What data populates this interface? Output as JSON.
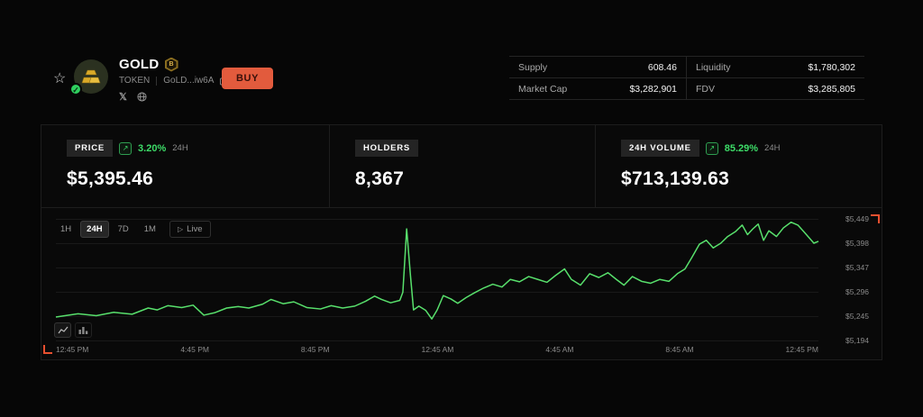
{
  "header": {
    "token_name": "GOLD",
    "badge_letter": "B",
    "token_type": "TOKEN",
    "token_address": "GoLD...iw6A",
    "buy_label": "BUY"
  },
  "stats_table": {
    "cells": [
      {
        "label": "Supply",
        "value": "608.46"
      },
      {
        "label": "Liquidity",
        "value": "$1,780,302"
      },
      {
        "label": "Market Cap",
        "value": "$3,282,901"
      },
      {
        "label": "FDV",
        "value": "$3,285,805"
      }
    ]
  },
  "stat_cards": [
    {
      "label": "PRICE",
      "change": "3.20%",
      "period": "24H",
      "value": "$5,395.46"
    },
    {
      "label": "HOLDERS",
      "value": "8,367"
    },
    {
      "label": "24H VOLUME",
      "change": "85.29%",
      "period": "24H",
      "value": "$713,139.63"
    }
  ],
  "chart_controls": {
    "ranges": [
      "1H",
      "24H",
      "7D",
      "1M"
    ],
    "active_range": "24H",
    "live_label": "Live"
  },
  "chart_data": {
    "type": "line",
    "line_color": "#58e06c",
    "ylim": [
      5194,
      5449
    ],
    "grid": true,
    "legend": "none",
    "y_ticks": [
      "$5,449",
      "$5,398",
      "$5,347",
      "$5,296",
      "$5,245",
      "$5,194"
    ],
    "x_ticks": [
      "12:45 PM",
      "4:45 PM",
      "8:45 PM",
      "12:45 AM",
      "4:45 AM",
      "8:45 AM",
      "12:45 PM"
    ],
    "points": [
      [
        0,
        5243
      ],
      [
        2.9,
        5250
      ],
      [
        5.3,
        5246
      ],
      [
        7.6,
        5253
      ],
      [
        10,
        5249
      ],
      [
        12.1,
        5262
      ],
      [
        13.3,
        5258
      ],
      [
        14.7,
        5267
      ],
      [
        16.5,
        5263
      ],
      [
        18,
        5268
      ],
      [
        19.4,
        5247
      ],
      [
        20.8,
        5252
      ],
      [
        22.4,
        5262
      ],
      [
        23.9,
        5265
      ],
      [
        25.3,
        5262
      ],
      [
        27.1,
        5270
      ],
      [
        28.2,
        5280
      ],
      [
        29.8,
        5271
      ],
      [
        31.2,
        5275
      ],
      [
        32.9,
        5263
      ],
      [
        34.7,
        5260
      ],
      [
        36.1,
        5267
      ],
      [
        37.6,
        5262
      ],
      [
        39.2,
        5266
      ],
      [
        40.6,
        5276
      ],
      [
        41.8,
        5287
      ],
      [
        42.7,
        5280
      ],
      [
        43.9,
        5273
      ],
      [
        45.1,
        5278
      ],
      [
        45.5,
        5295
      ],
      [
        46,
        5428
      ],
      [
        46.5,
        5330
      ],
      [
        46.9,
        5258
      ],
      [
        47.6,
        5266
      ],
      [
        48.5,
        5257
      ],
      [
        49.3,
        5239
      ],
      [
        50,
        5258
      ],
      [
        50.8,
        5288
      ],
      [
        51.8,
        5281
      ],
      [
        52.7,
        5272
      ],
      [
        53.8,
        5284
      ],
      [
        54.9,
        5294
      ],
      [
        56.1,
        5304
      ],
      [
        57.3,
        5312
      ],
      [
        58.5,
        5306
      ],
      [
        59.6,
        5322
      ],
      [
        60.8,
        5317
      ],
      [
        62,
        5328
      ],
      [
        63.2,
        5322
      ],
      [
        64.4,
        5316
      ],
      [
        65.5,
        5330
      ],
      [
        66.7,
        5344
      ],
      [
        67.6,
        5322
      ],
      [
        68.8,
        5310
      ],
      [
        70,
        5334
      ],
      [
        71.2,
        5326
      ],
      [
        72.4,
        5336
      ],
      [
        73.5,
        5322
      ],
      [
        74.5,
        5310
      ],
      [
        75.6,
        5328
      ],
      [
        76.8,
        5318
      ],
      [
        78,
        5314
      ],
      [
        79.2,
        5322
      ],
      [
        80.4,
        5318
      ],
      [
        81.5,
        5334
      ],
      [
        82.5,
        5344
      ],
      [
        83.4,
        5368
      ],
      [
        84.4,
        5396
      ],
      [
        85.3,
        5404
      ],
      [
        86.2,
        5388
      ],
      [
        87.2,
        5398
      ],
      [
        88.1,
        5412
      ],
      [
        89.1,
        5422
      ],
      [
        90,
        5436
      ],
      [
        90.7,
        5416
      ],
      [
        91.4,
        5428
      ],
      [
        92.1,
        5438
      ],
      [
        92.8,
        5404
      ],
      [
        93.5,
        5424
      ],
      [
        94.5,
        5412
      ],
      [
        95.4,
        5430
      ],
      [
        96.4,
        5442
      ],
      [
        97.3,
        5436
      ],
      [
        98.2,
        5420
      ],
      [
        99.4,
        5398
      ],
      [
        100,
        5402
      ]
    ]
  },
  "colors": {
    "accent_green": "#3ddc68",
    "buy_orange": "#e25b3d",
    "bracket_orange": "#e8502f"
  }
}
